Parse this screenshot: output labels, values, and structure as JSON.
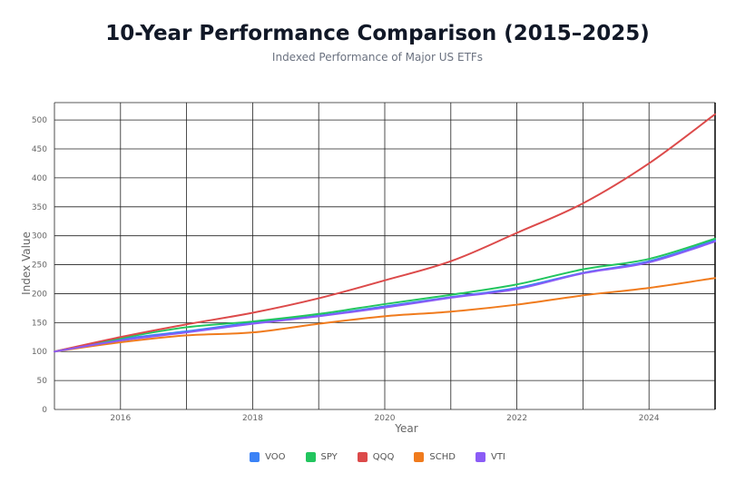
{
  "chart_data": {
    "type": "line",
    "title": "10-Year Performance Comparison (2015–2025)",
    "subtitle": "Indexed Performance of Major US ETFs",
    "xlabel": "Year",
    "ylabel": "Index Value",
    "xlim": [
      2015,
      2025
    ],
    "ylim": [
      0,
      530
    ],
    "x_ticks": [
      2016,
      2018,
      2020,
      2022,
      2024
    ],
    "y_ticks": [
      0,
      50,
      100,
      150,
      200,
      250,
      300,
      350,
      400,
      450,
      500
    ],
    "grid": true,
    "legend_position": "bottom",
    "x": [
      2015,
      2016,
      2017,
      2018,
      2019,
      2020,
      2021,
      2022,
      2023,
      2024,
      2025
    ],
    "series": [
      {
        "name": "VOO",
        "color": "#3b82f6",
        "values": [
          100,
          121,
          135,
          150,
          162,
          178,
          194,
          210,
          236,
          256,
          292
        ]
      },
      {
        "name": "SPY",
        "color": "#22c55e",
        "values": [
          100,
          123,
          142,
          152,
          165,
          182,
          198,
          216,
          242,
          260,
          295
        ]
      },
      {
        "name": "QQQ",
        "color": "#dc4a4a",
        "values": [
          100,
          125,
          147,
          167,
          192,
          223,
          256,
          305,
          356,
          425,
          510
        ]
      },
      {
        "name": "SCHD",
        "color": "#f07b1d",
        "values": [
          100,
          116,
          128,
          133,
          148,
          161,
          169,
          181,
          197,
          210,
          227
        ]
      },
      {
        "name": "VTI",
        "color": "#8b5cf6",
        "values": [
          100,
          119,
          133,
          148,
          161,
          176,
          193,
          208,
          235,
          254,
          290
        ]
      }
    ]
  }
}
